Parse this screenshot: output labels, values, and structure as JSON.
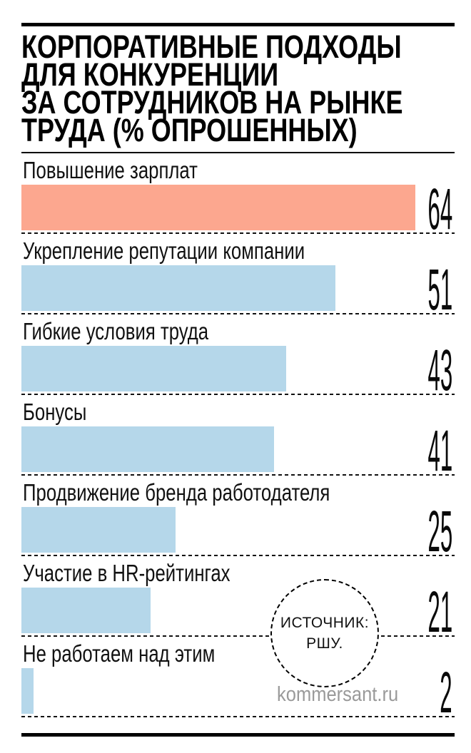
{
  "header": {
    "title_lines": [
      "КОРПОРАТИВНЫЕ ПОДХОДЫ",
      "ДЛЯ КОНКУРЕНЦИИ",
      "ЗА СОТРУДНИКОВ НА РЫНКЕ",
      "ТРУДА (% ОПРОШЕННЫХ)"
    ]
  },
  "chart_data": {
    "type": "bar",
    "orientation": "horizontal",
    "title": "Корпоративные подходы для конкуренции за сотрудников на рынке труда (% опрошенных)",
    "categories": [
      "Повышение зарплат",
      "Укрепление репутации компании",
      "Гибкие условия труда",
      "Бонусы",
      "Продвижение бренда работодателя",
      "Участие в HR-рейтингах",
      "Не работаем над этим"
    ],
    "values": [
      64,
      51,
      43,
      41,
      25,
      21,
      2
    ],
    "value_suffix": "",
    "xlim": [
      0,
      64
    ],
    "highlight_index": 0,
    "grid": "dashed-row-separators",
    "value_label_position": "right"
  },
  "source": {
    "label": "ИСТОЧНИК:",
    "name": "РШУ."
  },
  "watermark": "kommersant.ru",
  "colors": {
    "highlight_bar": "#fca78f",
    "bar": "#b5d7ea",
    "rule": "#000000",
    "dash": "#111111",
    "watermark_text": "#9a9a9a"
  }
}
